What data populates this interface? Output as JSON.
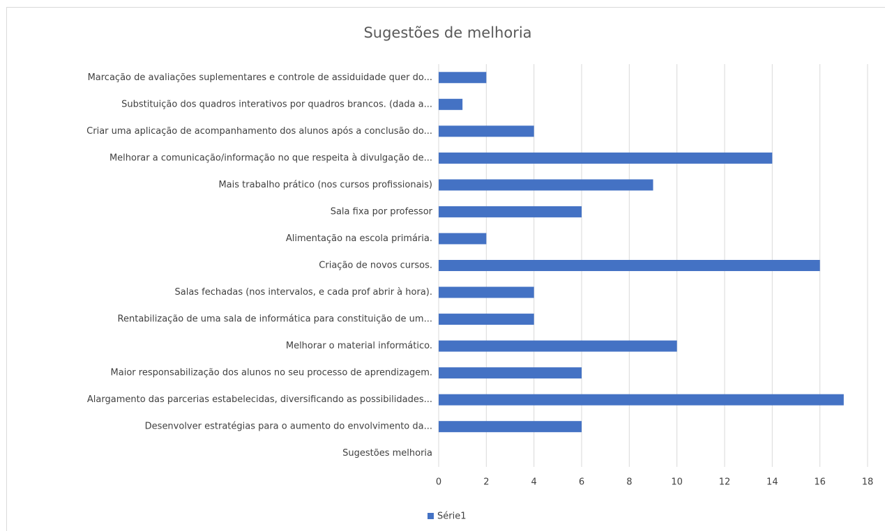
{
  "chart_data": {
    "type": "hbar",
    "title": "Sugestões de melhoria",
    "categories": [
      "Marcação de avaliações suplementares e controle de assiduidade quer do...",
      "Substituição dos quadros interativos por quadros brancos. (dada a...",
      "Criar uma aplicação de acompanhamento dos alunos após a conclusão do...",
      "Melhorar a comunicação/informação no que respeita à divulgação de...",
      "Mais trabalho prático (nos cursos profissionais)",
      "Sala fixa por professor",
      "Alimentação na escola primária.",
      "Criação de novos cursos.",
      "Salas fechadas (nos intervalos, e cada prof abrir à hora).",
      "Rentabilização de uma sala de informática para constituição de um...",
      "Melhorar o material informático.",
      "Maior responsabilização dos alunos no seu processo de aprendizagem.",
      "Alargamento das parcerias estabelecidas, diversificando as possibilidades...",
      "Desenvolver estratégias para o aumento do envolvimento da...",
      "Sugestões melhoria"
    ],
    "series": [
      {
        "name": "Série1",
        "color": "#4472c4",
        "values": [
          2,
          1,
          4,
          14,
          9,
          6,
          2,
          16,
          4,
          4,
          10,
          6,
          17,
          6,
          null
        ]
      }
    ],
    "xlim": [
      0,
      18
    ],
    "xticks": [
      0,
      2,
      4,
      6,
      8,
      10,
      12,
      14,
      16,
      18
    ],
    "grid": true,
    "legend": "bottom"
  }
}
